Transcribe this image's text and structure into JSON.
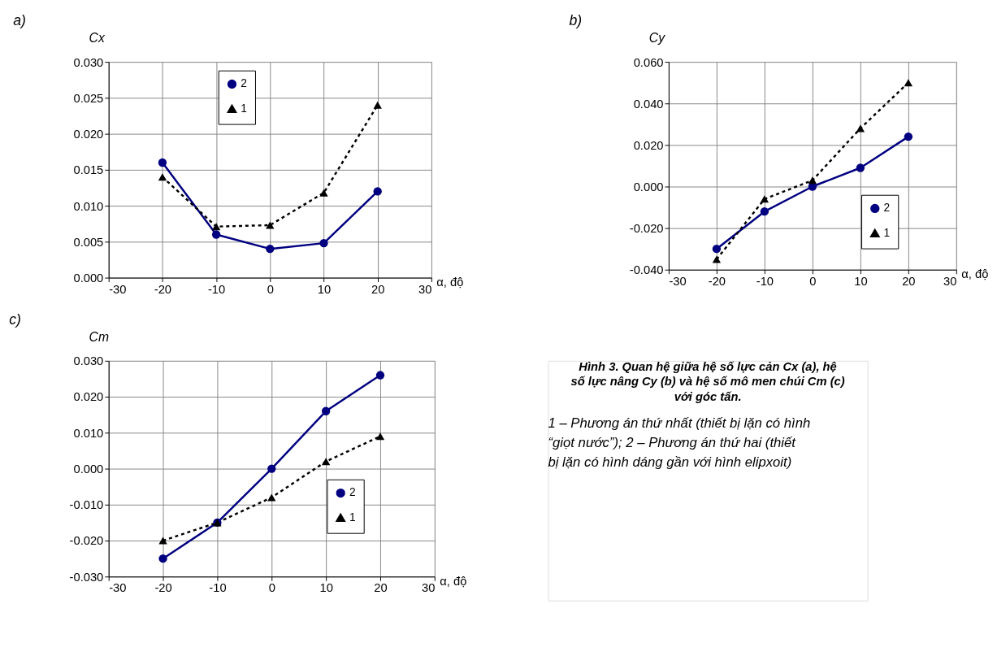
{
  "chart_data": [
    {
      "type": "line",
      "title": "a)",
      "ylabel": "Cx",
      "xlabel": "α, độ",
      "x": [
        -20,
        -10,
        0,
        10,
        20
      ],
      "xlim": [
        -30,
        30
      ],
      "xticks": [
        -30,
        -20,
        -10,
        0,
        10,
        20,
        30
      ],
      "ylim": [
        0,
        0.03
      ],
      "yticks": [
        {
          "value": 0,
          "label": "0.000"
        },
        {
          "value": 0.005,
          "label": "0.005"
        },
        {
          "value": 0.01,
          "label": "0.010"
        },
        {
          "value": 0.015,
          "label": "0.015"
        },
        {
          "value": 0.02,
          "label": "0.020"
        },
        {
          "value": 0.025,
          "label": "0.025"
        },
        {
          "value": 0.03,
          "label": "0.030"
        }
      ],
      "grid": true,
      "legend": "top",
      "series": [
        {
          "name": "2",
          "color": "#000080",
          "marker": "circle",
          "line_style": "solid",
          "values": [
            0.016,
            0.006,
            0.004,
            0.0048,
            0.012
          ]
        },
        {
          "name": "1",
          "color": "#000000",
          "marker": "triangle",
          "line_style": "dashed",
          "values": [
            0.014,
            0.0071,
            0.0073,
            0.0118,
            0.024
          ]
        }
      ]
    },
    {
      "type": "line",
      "title": "b)",
      "ylabel": "Cy",
      "xlabel": "α, độ",
      "x": [
        -20,
        -10,
        0,
        10,
        20
      ],
      "xlim": [
        -30,
        30
      ],
      "xticks": [
        -30,
        -20,
        -10,
        0,
        10,
        20,
        30
      ],
      "ylim": [
        -0.04,
        0.06
      ],
      "yticks": [
        {
          "value": -0.04,
          "label": "-0.040"
        },
        {
          "value": -0.02,
          "label": "-0.020"
        },
        {
          "value": 0,
          "label": "0.000"
        },
        {
          "value": 0.02,
          "label": "0.020"
        },
        {
          "value": 0.04,
          "label": "0.040"
        },
        {
          "value": 0.06,
          "label": "0.060"
        }
      ],
      "grid": true,
      "legend": "right",
      "series": [
        {
          "name": "2",
          "color": "#000080",
          "marker": "circle",
          "line_style": "solid",
          "values": [
            -0.03,
            -0.012,
            0.0,
            0.009,
            0.024
          ]
        },
        {
          "name": "1",
          "color": "#000000",
          "marker": "triangle",
          "line_style": "dashed",
          "values": [
            -0.035,
            -0.006,
            0.003,
            0.028,
            0.05
          ]
        }
      ]
    },
    {
      "type": "line",
      "title": "c)",
      "ylabel": "Cm",
      "xlabel": "α, độ",
      "x": [
        -20,
        -10,
        0,
        10,
        20
      ],
      "xlim": [
        -30,
        30
      ],
      "xticks": [
        -30,
        -20,
        -10,
        0,
        10,
        20,
        30
      ],
      "ylim": [
        -0.03,
        0.03
      ],
      "yticks": [
        {
          "value": -0.03,
          "label": "-0.030"
        },
        {
          "value": -0.02,
          "label": "-0.020"
        },
        {
          "value": -0.01,
          "label": "-0.010"
        },
        {
          "value": 0,
          "label": "0.000"
        },
        {
          "value": 0.01,
          "label": "0.010"
        },
        {
          "value": 0.02,
          "label": "0.020"
        },
        {
          "value": 0.03,
          "label": "0.030"
        }
      ],
      "grid": true,
      "legend": "bottom right",
      "series": [
        {
          "name": "2",
          "color": "#000080",
          "marker": "circle",
          "line_style": "solid",
          "values": [
            -0.025,
            -0.015,
            0.0,
            0.016,
            0.026
          ]
        },
        {
          "name": "1",
          "color": "#000000",
          "marker": "triangle",
          "line_style": "dashed",
          "values": [
            -0.02,
            -0.015,
            -0.008,
            0.002,
            0.009
          ]
        }
      ]
    },
    {
      "type": "other",
      "title": "Hình 3. Quan hệ giữa hệ số lực cản Cx (a), hệ số lực nâng Cy (b) và hệ số mô men chúi Cm (c) với góc tấn.",
      "annotations": [
        "1 – Phương án thứ nhất (thiết bị lặn có hình “giọt nước”); 2 – Phương án thứ hai (thiết bị lặn có hình dáng gần với hình elipxoit)"
      ]
    }
  ]
}
